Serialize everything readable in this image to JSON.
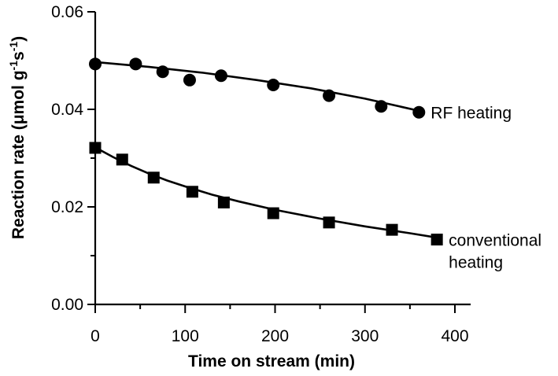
{
  "chart_data": {
    "type": "scatter",
    "xlabel": "Time on stream (min)",
    "ylabel_parts": [
      "Reaction rate (",
      "μ",
      "mol g",
      "-1",
      "s",
      "-1",
      ")"
    ],
    "xlim": [
      0,
      400
    ],
    "ylim": [
      0,
      0.06
    ],
    "xticks": [
      0,
      100,
      200,
      300,
      400
    ],
    "yticks": [
      0.0,
      0.02,
      0.04,
      0.06
    ],
    "ytick_labels": [
      "0.00",
      "0.02",
      "0.04",
      "0.06"
    ],
    "xtick_labels": [
      "0",
      "100",
      "200",
      "300",
      "400"
    ],
    "grid": false,
    "series": [
      {
        "name": "RF heating",
        "marker": "circle",
        "label_lines": [
          "RF heating"
        ],
        "points": [
          {
            "x": 0,
            "y": 0.0493
          },
          {
            "x": 45,
            "y": 0.0493
          },
          {
            "x": 75,
            "y": 0.0477
          },
          {
            "x": 105,
            "y": 0.046
          },
          {
            "x": 140,
            "y": 0.0469
          },
          {
            "x": 198,
            "y": 0.045
          },
          {
            "x": 260,
            "y": 0.0428
          },
          {
            "x": 318,
            "y": 0.0406
          },
          {
            "x": 360,
            "y": 0.0394
          }
        ],
        "fit": {
          "x": [
            0,
            60,
            120,
            180,
            240,
            300,
            360
          ],
          "y": [
            0.0497,
            0.0487,
            0.0475,
            0.046,
            0.0443,
            0.0422,
            0.0397
          ]
        }
      },
      {
        "name": "conventional heating",
        "marker": "square",
        "label_lines": [
          "conventional",
          "heating"
        ],
        "points": [
          {
            "x": 0,
            "y": 0.0321
          },
          {
            "x": 30,
            "y": 0.0297
          },
          {
            "x": 65,
            "y": 0.026
          },
          {
            "x": 108,
            "y": 0.0231
          },
          {
            "x": 143,
            "y": 0.0209
          },
          {
            "x": 198,
            "y": 0.0187
          },
          {
            "x": 260,
            "y": 0.0168
          },
          {
            "x": 330,
            "y": 0.0153
          },
          {
            "x": 380,
            "y": 0.0133
          }
        ],
        "fit": {
          "x": [
            0,
            20,
            40,
            60,
            80,
            100,
            130,
            160,
            200,
            250,
            300,
            350,
            380
          ],
          "y": [
            0.0322,
            0.0302,
            0.0284,
            0.0268,
            0.0254,
            0.0242,
            0.0225,
            0.0211,
            0.0194,
            0.0176,
            0.016,
            0.0146,
            0.0137
          ]
        }
      }
    ]
  }
}
